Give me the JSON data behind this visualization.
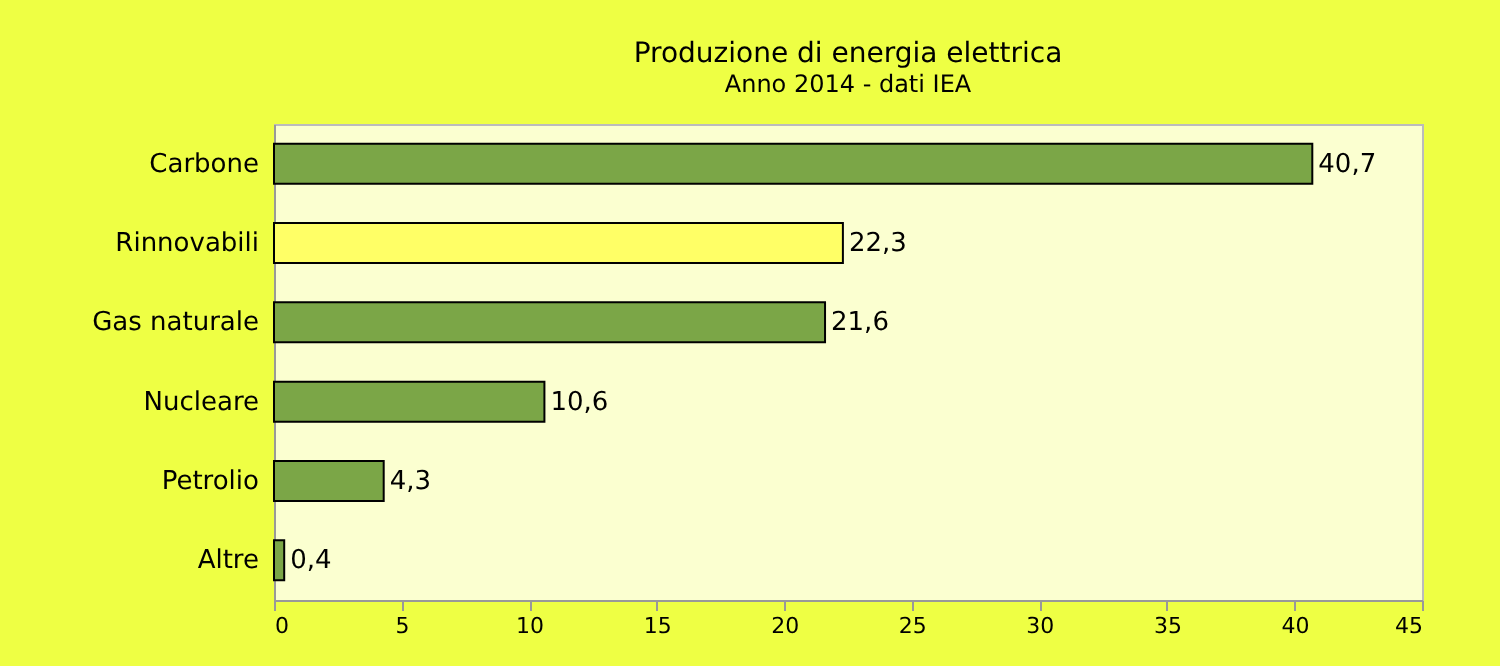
{
  "chart_data": {
    "type": "bar",
    "orientation": "horizontal",
    "title": "Produzione di energia elettrica",
    "subtitle": "Anno 2014 - dati IEA",
    "categories": [
      "Carbone",
      "Rinnovabili",
      "Gas naturale",
      "Nucleare",
      "Petrolio",
      "Altre"
    ],
    "values": [
      40.7,
      22.3,
      21.6,
      10.6,
      4.3,
      0.4
    ],
    "colors": [
      "#7ba647",
      "#ffff66",
      "#7ba647",
      "#7ba647",
      "#7ba647",
      "#7ba647"
    ],
    "value_labels": [
      "40,7",
      "22,3",
      "21,6",
      "10,6",
      "4,3",
      "0,4"
    ],
    "xlim": [
      0,
      45
    ],
    "xticks": [
      0,
      5,
      10,
      15,
      20,
      25,
      30,
      35,
      40,
      45
    ],
    "grid": false,
    "legend": false
  }
}
